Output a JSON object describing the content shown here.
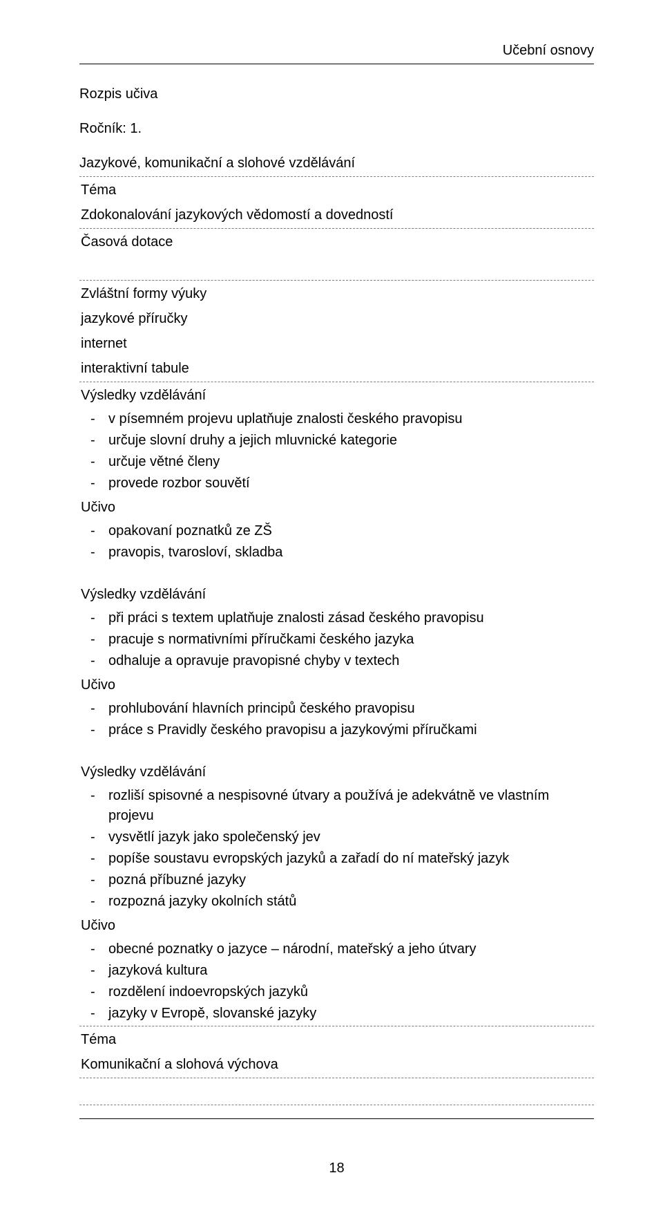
{
  "header": {
    "right": "Učební osnovy"
  },
  "titles": {
    "rozpis": "Rozpis učiva",
    "rocnik": "Ročník: 1.",
    "main": "Jazykové, komunikační a slohové vzdělávání"
  },
  "labels": {
    "tema": "Téma",
    "casova_dotace": "Časová dotace",
    "zvlastni_formy": "Zvláštní formy výuky",
    "vysledky": "Výsledky vzdělávání",
    "ucivo": "Učivo"
  },
  "tema1": "Zdokonalování jazykových vědomostí a dovedností",
  "formy": {
    "f1": "jazykové příručky",
    "f2": "internet",
    "f3": "interaktivní tabule"
  },
  "res1": {
    "r1": "v písemném projevu uplatňuje znalosti českého pravopisu",
    "r2": "určuje slovní druhy a jejich mluvnické kategorie",
    "r3": "určuje větné členy",
    "r4": "provede rozbor souvětí"
  },
  "uc1": {
    "u1": "opakovaní poznatků ze ZŠ",
    "u2": "pravopis, tvarosloví, skladba"
  },
  "res2": {
    "r1": "při práci s textem uplatňuje znalosti zásad českého pravopisu",
    "r2": "pracuje s normativními příručkami českého jazyka",
    "r3": "odhaluje a opravuje pravopisné chyby v textech"
  },
  "uc2": {
    "u1": "prohlubování hlavních principů českého pravopisu",
    "u2": "práce s Pravidly českého pravopisu a jazykovými příručkami"
  },
  "res3": {
    "r1": "rozliší spisovné a nespisovné útvary a používá je adekvátně ve vlastním projevu",
    "r2": "vysvětlí jazyk jako společenský jev",
    "r3": "popíše soustavu evropských jazyků a zařadí do ní mateřský jazyk",
    "r4": "pozná příbuzné jazyky",
    "r5": "rozpozná jazyky okolních států"
  },
  "uc3": {
    "u1": "obecné poznatky o jazyce – národní, mateřský a jeho útvary",
    "u2": "jazyková kultura",
    "u3": "rozdělení indoevropských jazyků",
    "u4": "jazyky v Evropě, slovanské jazyky"
  },
  "tema2": "Komunikační a slohová výchova",
  "footer": {
    "page": "18"
  }
}
